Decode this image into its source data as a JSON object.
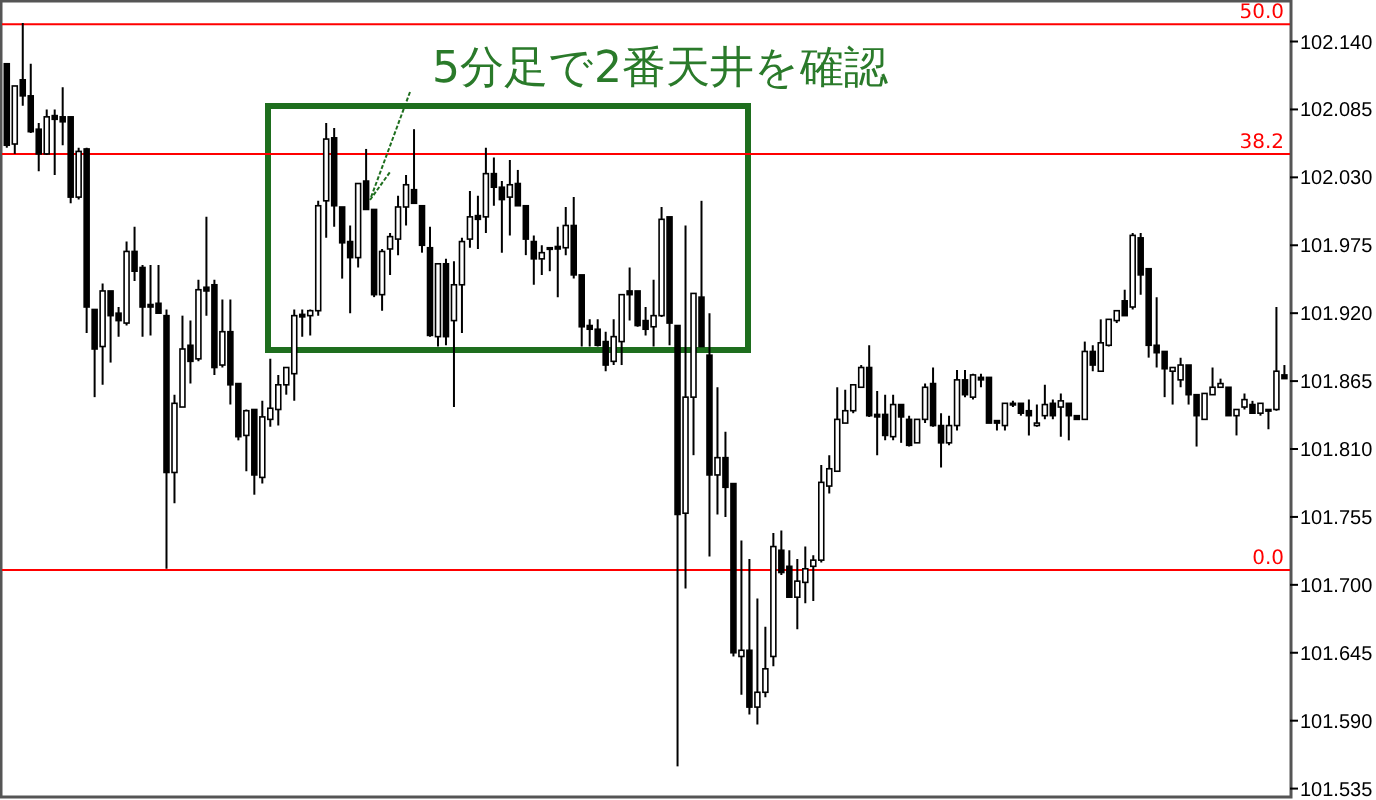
{
  "chart_data": {
    "type": "candlestick",
    "categories": [
      null,
      null,
      null,
      null,
      null,
      null,
      null,
      null,
      null,
      null,
      null,
      null,
      null,
      null,
      null,
      null,
      null,
      null,
      null,
      null,
      null,
      null,
      null,
      null,
      null,
      null,
      null,
      null,
      null,
      null,
      null,
      null,
      null,
      null,
      null,
      null,
      null,
      null,
      null,
      null,
      null,
      null,
      null,
      null,
      null,
      null,
      null,
      null,
      null,
      null,
      null,
      null,
      null,
      null,
      null,
      null,
      null,
      null,
      null,
      null,
      null,
      null,
      null,
      null,
      null,
      null,
      null,
      null,
      null,
      null,
      null,
      null,
      null,
      null,
      null,
      null,
      null,
      null,
      null,
      null,
      null,
      null,
      null,
      null,
      null,
      null,
      null,
      null,
      null,
      null,
      null,
      null,
      null,
      null,
      null,
      null,
      null,
      null,
      null,
      null,
      null,
      null,
      null,
      null,
      null,
      null,
      null,
      null,
      null,
      null,
      null,
      null,
      null,
      null,
      null,
      null,
      null,
      null,
      null,
      null,
      null,
      null,
      null,
      null,
      null,
      null,
      null,
      null,
      null,
      null,
      null,
      null,
      null,
      null,
      null,
      null,
      null,
      null,
      null,
      null,
      null,
      null,
      null,
      null,
      null,
      null,
      null,
      null,
      null,
      null,
      null,
      null,
      null,
      null,
      null,
      null,
      null,
      null,
      null,
      null,
      null
    ],
    "ohlc": [
      [
        102.122,
        102.122,
        102.054,
        102.056
      ],
      [
        102.057,
        102.104,
        102.049,
        102.104
      ],
      [
        102.109,
        102.155,
        102.088,
        102.096
      ],
      [
        102.096,
        102.122,
        102.066,
        102.067
      ],
      [
        102.069,
        102.074,
        102.035,
        102.049
      ],
      [
        102.049,
        102.085,
        102.048,
        102.079
      ],
      [
        102.08,
        102.085,
        102.032,
        102.077
      ],
      [
        102.079,
        102.103,
        102.056,
        102.075
      ],
      [
        102.079,
        102.079,
        102.009,
        102.014
      ],
      [
        102.014,
        102.054,
        102.012,
        102.051
      ],
      [
        102.053,
        102.054,
        101.904,
        101.925
      ],
      [
        101.923,
        101.923,
        101.852,
        101.891
      ],
      [
        101.893,
        101.944,
        101.862,
        101.938
      ],
      [
        101.938,
        101.938,
        101.88,
        101.918
      ],
      [
        101.92,
        101.925,
        101.901,
        101.914
      ],
      [
        101.912,
        101.978,
        101.91,
        101.97
      ],
      [
        101.97,
        101.99,
        101.946,
        101.954
      ],
      [
        101.957,
        101.959,
        101.901,
        101.925
      ],
      [
        101.927,
        101.959,
        101.902,
        101.925
      ],
      [
        101.928,
        101.959,
        101.92,
        101.92
      ],
      [
        101.918,
        101.923,
        101.713,
        101.791
      ],
      [
        101.791,
        101.854,
        101.766,
        101.847
      ],
      [
        101.844,
        101.918,
        101.844,
        101.891
      ],
      [
        101.894,
        101.914,
        101.863,
        101.881
      ],
      [
        101.883,
        101.947,
        101.881,
        101.939
      ],
      [
        101.941,
        101.998,
        101.918,
        101.938
      ],
      [
        101.943,
        101.947,
        101.87,
        101.876
      ],
      [
        101.878,
        101.931,
        101.876,
        101.905
      ],
      [
        101.905,
        101.931,
        101.846,
        101.862
      ],
      [
        101.863,
        101.863,
        101.817,
        101.82
      ],
      [
        101.821,
        101.842,
        101.792,
        101.841
      ],
      [
        101.842,
        101.842,
        101.773,
        101.789
      ],
      [
        101.787,
        101.849,
        101.782,
        101.836
      ],
      [
        101.834,
        101.883,
        101.828,
        101.843
      ],
      [
        101.842,
        101.87,
        101.829,
        101.862
      ],
      [
        101.862,
        101.876,
        101.854,
        101.876
      ],
      [
        101.871,
        101.923,
        101.849,
        101.918
      ],
      [
        101.919,
        101.923,
        101.901,
        101.917
      ],
      [
        101.918,
        101.923,
        101.902,
        101.922
      ],
      [
        101.922,
        102.011,
        101.918,
        102.007
      ],
      [
        102.011,
        102.074,
        101.981,
        102.061
      ],
      [
        102.062,
        102.07,
        101.99,
        102.007
      ],
      [
        102.006,
        102.006,
        101.948,
        101.977
      ],
      [
        101.978,
        101.991,
        101.92,
        101.965
      ],
      [
        101.965,
        102.025,
        101.957,
        102.025
      ],
      [
        102.027,
        102.053,
        102.004,
        102.004
      ],
      [
        102.004,
        102.004,
        101.933,
        101.935
      ],
      [
        101.935,
        101.972,
        101.922,
        101.97
      ],
      [
        101.972,
        101.985,
        101.951,
        101.982
      ],
      [
        101.98,
        102.015,
        101.967,
        102.006
      ],
      [
        102.006,
        102.032,
        101.991,
        102.024
      ],
      [
        102.02,
        102.069,
        102.009,
        102.009
      ],
      [
        102.007,
        102.007,
        101.969,
        101.975
      ],
      [
        101.973,
        101.99,
        101.901,
        101.902
      ],
      [
        101.901,
        101.96,
        101.893,
        101.96
      ],
      [
        101.96,
        101.964,
        101.894,
        101.901
      ],
      [
        101.914,
        101.962,
        101.844,
        101.943
      ],
      [
        101.943,
        101.981,
        101.904,
        101.978
      ],
      [
        101.98,
        102.019,
        101.973,
        101.998
      ],
      [
        101.999,
        102.015,
        101.972,
        101.996
      ],
      [
        101.998,
        102.054,
        101.985,
        102.033
      ],
      [
        102.033,
        102.046,
        102.007,
        102.022
      ],
      [
        102.022,
        102.027,
        101.969,
        102.012
      ],
      [
        102.014,
        102.044,
        101.983,
        102.024
      ],
      [
        102.025,
        102.036,
        102.007,
        102.007
      ],
      [
        102.007,
        102.007,
        101.967,
        101.98
      ],
      [
        101.978,
        101.983,
        101.943,
        101.964
      ],
      [
        101.964,
        101.975,
        101.951,
        101.969
      ],
      [
        101.973,
        101.973,
        101.954,
        101.972
      ],
      [
        101.974,
        101.99,
        101.933,
        101.972
      ],
      [
        101.973,
        102.006,
        101.967,
        101.991
      ],
      [
        101.991,
        102.014,
        101.948,
        101.951
      ],
      [
        101.951,
        101.951,
        101.893,
        101.909
      ],
      [
        101.91,
        101.915,
        101.893,
        101.907
      ],
      [
        101.907,
        101.915,
        101.893,
        101.894
      ],
      [
        101.897,
        101.905,
        101.873,
        101.878
      ],
      [
        101.881,
        101.915,
        101.878,
        101.901
      ],
      [
        101.897,
        101.935,
        101.878,
        101.935
      ],
      [
        101.938,
        101.957,
        101.914,
        101.935
      ],
      [
        101.938,
        101.938,
        101.909,
        101.91
      ],
      [
        101.914,
        101.925,
        101.902,
        101.907
      ],
      [
        101.909,
        101.947,
        101.893,
        101.918
      ],
      [
        101.918,
        102.006,
        101.917,
        101.996
      ],
      [
        101.998,
        101.998,
        101.894,
        101.912
      ],
      [
        101.91,
        101.91,
        101.553,
        101.757
      ],
      [
        101.758,
        101.991,
        101.697,
        101.852
      ],
      [
        101.852,
        101.936,
        101.805,
        101.936
      ],
      [
        101.933,
        102.011,
        101.893,
        101.893
      ],
      [
        101.886,
        101.92,
        101.723,
        101.789
      ],
      [
        101.789,
        101.86,
        101.757,
        101.803
      ],
      [
        101.803,
        101.824,
        101.755,
        101.779
      ],
      [
        101.782,
        101.782,
        101.642,
        101.645
      ],
      [
        101.642,
        101.736,
        101.611,
        101.647
      ],
      [
        101.647,
        101.721,
        101.595,
        101.601
      ],
      [
        101.601,
        101.689,
        101.587,
        101.613
      ],
      [
        101.613,
        101.666,
        101.609,
        101.632
      ],
      [
        101.642,
        101.742,
        101.634,
        101.731
      ],
      [
        101.728,
        101.744,
        101.708,
        101.71
      ],
      [
        101.715,
        101.728,
        101.69,
        101.69
      ],
      [
        101.69,
        101.721,
        101.664,
        101.703
      ],
      [
        101.702,
        101.731,
        101.685,
        101.713
      ],
      [
        101.715,
        101.724,
        101.687,
        101.72
      ],
      [
        101.72,
        101.797,
        101.718,
        101.783
      ],
      [
        101.78,
        101.805,
        101.774,
        101.794
      ],
      [
        101.792,
        101.86,
        101.792,
        101.834
      ],
      [
        101.831,
        101.858,
        101.831,
        101.841
      ],
      [
        101.841,
        101.862,
        101.839,
        101.862
      ],
      [
        101.86,
        101.878,
        101.86,
        101.876
      ],
      [
        101.876,
        101.894,
        101.836,
        101.837
      ],
      [
        101.838,
        101.857,
        101.805,
        101.836
      ],
      [
        101.838,
        101.854,
        101.817,
        101.821
      ],
      [
        101.82,
        101.854,
        101.817,
        101.846
      ],
      [
        101.846,
        101.846,
        101.815,
        101.836
      ],
      [
        101.834,
        101.837,
        101.812,
        101.813
      ],
      [
        101.815,
        101.834,
        101.815,
        101.834
      ],
      [
        101.834,
        101.863,
        101.831,
        101.86
      ],
      [
        101.863,
        101.876,
        101.828,
        101.829
      ],
      [
        101.829,
        101.839,
        101.795,
        101.815
      ],
      [
        101.815,
        101.837,
        101.813,
        101.829
      ],
      [
        101.829,
        101.874,
        101.825,
        101.866
      ],
      [
        101.866,
        101.874,
        101.852,
        101.854
      ],
      [
        101.852,
        101.871,
        101.85,
        101.87
      ],
      [
        101.868,
        101.871,
        101.86,
        101.866
      ],
      [
        101.868,
        101.868,
        101.831,
        101.831
      ],
      [
        101.833,
        101.833,
        101.825,
        101.831
      ],
      [
        101.829,
        101.847,
        101.825,
        101.847
      ],
      [
        101.847,
        101.849,
        101.844,
        101.846
      ],
      [
        101.847,
        101.847,
        101.837,
        101.839
      ],
      [
        101.841,
        101.85,
        101.821,
        101.837
      ],
      [
        101.829,
        101.846,
        101.828,
        101.831
      ],
      [
        101.837,
        101.862,
        101.834,
        101.846
      ],
      [
        101.847,
        101.85,
        101.834,
        101.837
      ],
      [
        101.844,
        101.855,
        101.82,
        101.849
      ],
      [
        101.847,
        101.847,
        101.817,
        101.837
      ],
      [
        101.837,
        101.837,
        101.834,
        101.834
      ],
      [
        101.834,
        101.897,
        101.834,
        101.889
      ],
      [
        101.889,
        101.894,
        101.873,
        101.878
      ],
      [
        101.873,
        101.915,
        101.873,
        101.896
      ],
      [
        101.894,
        101.915,
        101.893,
        101.915
      ],
      [
        101.914,
        101.922,
        101.912,
        101.922
      ],
      [
        101.93,
        101.939,
        101.918,
        101.918
      ],
      [
        101.925,
        101.985,
        101.923,
        101.983
      ],
      [
        101.981,
        101.985,
        101.935,
        101.951
      ],
      [
        101.956,
        101.956,
        101.884,
        101.894
      ],
      [
        101.894,
        101.933,
        101.876,
        101.888
      ],
      [
        101.889,
        101.889,
        101.852,
        101.875
      ],
      [
        101.873,
        101.876,
        101.846,
        101.876
      ],
      [
        101.866,
        101.884,
        101.86,
        101.878
      ],
      [
        101.878,
        101.878,
        101.846,
        101.854
      ],
      [
        101.854,
        101.854,
        101.812,
        101.837
      ],
      [
        101.834,
        101.855,
        101.834,
        101.855
      ],
      [
        101.854,
        101.876,
        101.854,
        101.86
      ],
      [
        101.86,
        101.867,
        101.86,
        101.863
      ],
      [
        101.86,
        101.86,
        101.837,
        101.837
      ],
      [
        101.837,
        101.842,
        101.821,
        101.842
      ],
      [
        101.844,
        101.855,
        101.842,
        101.85
      ],
      [
        101.846,
        101.849,
        101.839,
        101.839
      ],
      [
        101.839,
        101.847,
        101.837,
        101.847
      ],
      [
        101.841,
        101.842,
        101.826,
        101.842
      ],
      [
        101.842,
        101.925,
        101.841,
        101.873
      ],
      [
        101.87,
        101.878,
        101.867,
        101.867
      ]
    ],
    "ylim": [
      101.529,
      102.172
    ],
    "yticks": [
      {
        "value": 102.14,
        "label": "102.140"
      },
      {
        "value": 102.085,
        "label": "102.085"
      },
      {
        "value": 102.03,
        "label": "102.030"
      },
      {
        "value": 101.975,
        "label": "101.975"
      },
      {
        "value": 101.92,
        "label": "101.920"
      },
      {
        "value": 101.865,
        "label": "101.865"
      },
      {
        "value": 101.81,
        "label": "101.810"
      },
      {
        "value": 101.755,
        "label": "101.755"
      },
      {
        "value": 101.7,
        "label": "101.700"
      },
      {
        "value": 101.645,
        "label": "101.645"
      },
      {
        "value": 101.59,
        "label": "101.590"
      },
      {
        "value": 101.535,
        "label": "101.535"
      }
    ],
    "tick_labels": "y",
    "ref_lines": [
      {
        "axis": "y",
        "value": 102.154,
        "color": "#ff0000"
      },
      {
        "axis": "y",
        "value": 102.049,
        "color": "#ff0000"
      },
      {
        "axis": "y",
        "value": 101.712,
        "color": "#ff0000"
      }
    ],
    "annotations": [
      "5分足で2番天井を確認",
      {
        "text": "50.0",
        "y": 102.154
      },
      {
        "text": "38.2",
        "y": 102.049
      },
      {
        "text": "0.0",
        "y": 101.712
      }
    ]
  }
}
